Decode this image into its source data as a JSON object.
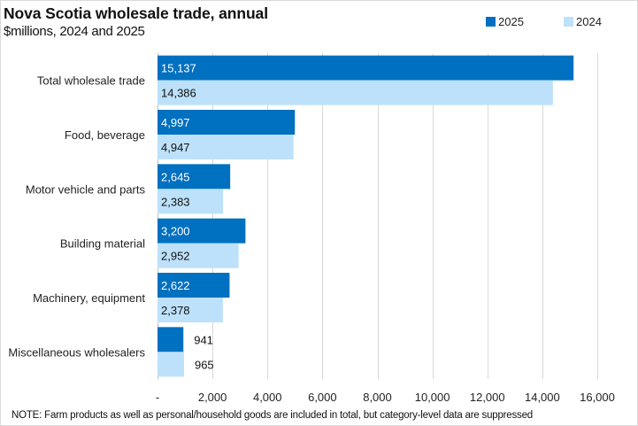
{
  "chart_data": {
    "type": "bar",
    "orientation": "horizontal",
    "title": "Nova Scotia wholesale trade, annual",
    "subtitle": "$millions, 2024 and 2025",
    "xlabel": "",
    "ylabel": "",
    "xlim": [
      0,
      16000
    ],
    "x_ticks": [
      0,
      2000,
      4000,
      6000,
      8000,
      10000,
      12000,
      14000,
      16000
    ],
    "x_tick_labels": [
      "-",
      "2,000",
      "4,000",
      "6,000",
      "8,000",
      "10,000",
      "12,000",
      "14,000",
      "16,000"
    ],
    "grid": "vertical",
    "legend_position": "top-right",
    "categories": [
      "Total wholesale trade",
      "Food, beverage",
      "Motor vehicle and parts",
      "Building material",
      "Machinery, equipment",
      "Miscellaneous wholesalers"
    ],
    "series": [
      {
        "name": "2025",
        "color": "#0070C0",
        "label_color": "#ffffff",
        "values": [
          15137,
          4997,
          2645,
          3200,
          2622,
          941
        ],
        "labels": [
          "15,137",
          "4,997",
          "2,645",
          "3,200",
          "2,622",
          "941"
        ]
      },
      {
        "name": "2024",
        "color": "#BDE1FA",
        "label_color": "#111111",
        "values": [
          14386,
          4947,
          2383,
          2952,
          2378,
          965
        ],
        "labels": [
          "14,386",
          "4,947",
          "2,383",
          "2,952",
          "2,378",
          "965"
        ]
      }
    ],
    "note": "NOTE:  Farm products as well as personal/household goods are included in total, but category-level  data are suppressed"
  }
}
